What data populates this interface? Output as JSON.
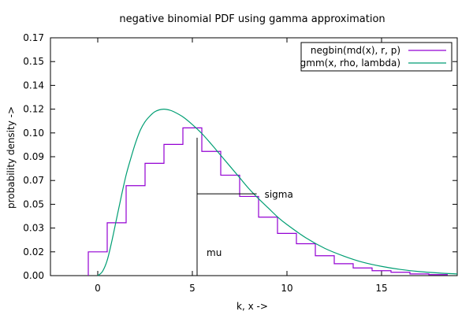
{
  "chart_data": {
    "type": "line",
    "title": "negative binomial PDF using gamma approximation",
    "xlabel": "k, x ->",
    "ylabel": "probability density ->",
    "xlim": [
      -2.5,
      19
    ],
    "ylim": [
      0,
      0.17
    ],
    "x_ticks": [
      0,
      5,
      10,
      15
    ],
    "x_tick_labels": [
      "0",
      "5",
      "10",
      "15"
    ],
    "y_ticks": [
      0,
      0.017,
      0.034,
      0.051,
      0.068,
      0.085,
      0.102,
      0.119,
      0.136,
      0.153,
      0.17
    ],
    "y_tick_labels": [
      "0.00",
      "0.02",
      "0.03",
      "0.05",
      "0.07",
      "0.09",
      "0.10",
      "0.12",
      "0.14",
      "0.15",
      "0.17"
    ],
    "grid": false,
    "legend_position": "top-right",
    "series": [
      {
        "name": "negbin(md(x), r, p)",
        "color": "#9400d3",
        "style": "steps",
        "k": [
          0,
          1,
          2,
          3,
          4,
          5,
          6,
          7,
          8,
          9,
          10,
          11,
          12,
          13,
          14,
          15,
          16,
          17,
          18
        ],
        "values": [
          0.017,
          0.0378,
          0.0643,
          0.0803,
          0.0938,
          0.1056,
          0.0888,
          0.0718,
          0.0566,
          0.0418,
          0.0302,
          0.0228,
          0.0142,
          0.0085,
          0.0055,
          0.0035,
          0.0024,
          0.0012,
          0.0007
        ]
      },
      {
        "name": "gmm(x, rho, lambda)",
        "color": "#009e73",
        "style": "line",
        "x": [
          0,
          0.25,
          0.5,
          0.75,
          1,
          1.25,
          1.5,
          1.75,
          2,
          2.25,
          2.5,
          2.75,
          3,
          3.25,
          3.5,
          3.75,
          4,
          4.5,
          5,
          5.5,
          6,
          6.5,
          7,
          7.5,
          8,
          8.5,
          9,
          9.5,
          10,
          11,
          12,
          13,
          14,
          15,
          16,
          17,
          18,
          19
        ],
        "values": [
          0.0,
          0.003,
          0.011,
          0.025,
          0.041,
          0.057,
          0.072,
          0.084,
          0.095,
          0.104,
          0.11,
          0.114,
          0.117,
          0.1185,
          0.119,
          0.1185,
          0.1173,
          0.1135,
          0.108,
          0.1016,
          0.094,
          0.086,
          0.078,
          0.07,
          0.062,
          0.055,
          0.0485,
          0.042,
          0.0365,
          0.027,
          0.0195,
          0.014,
          0.0096,
          0.0066,
          0.0044,
          0.0029,
          0.0019,
          0.0012
        ]
      }
    ],
    "annotations": [
      {
        "text": "mu",
        "x": 5.25,
        "y_top": 0.0986
      },
      {
        "text": "sigma",
        "y": 0.0585,
        "x_from": 5.25,
        "x_to": 8.4
      }
    ]
  }
}
